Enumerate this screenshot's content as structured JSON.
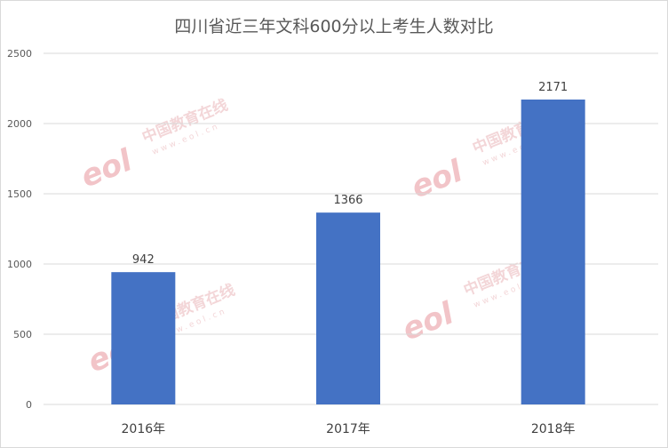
{
  "chart_data": {
    "type": "bar",
    "title": "四川省近三年文科600分以上考生人数对比",
    "categories": [
      "2016年",
      "2017年",
      "2018年"
    ],
    "values": [
      942,
      1366,
      2171
    ],
    "ylim": [
      0,
      2500
    ],
    "yticks": [
      0,
      500,
      1000,
      1500,
      2000,
      2500
    ],
    "grid": true,
    "legend": "none",
    "bar_color": "#4472c4",
    "grid_color": "#d9d9d9"
  },
  "watermark": {
    "logo": "eol",
    "name": "中国教育在线",
    "url": "www.eol.cn"
  }
}
